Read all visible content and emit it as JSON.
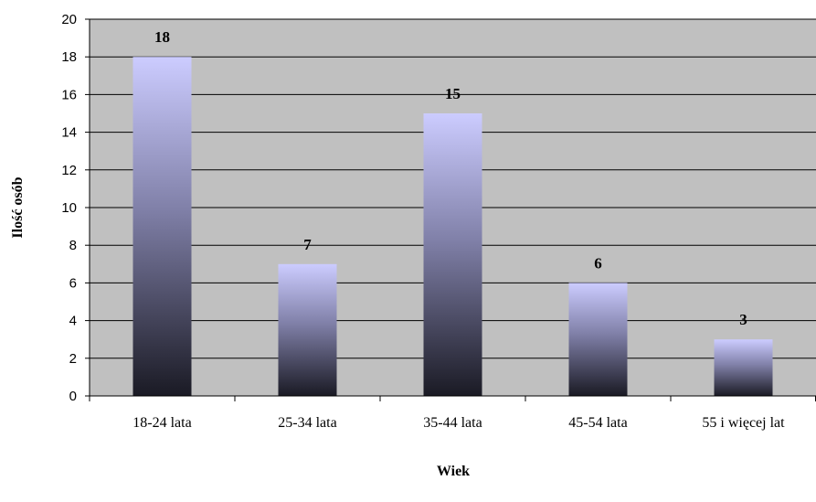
{
  "chart_data": {
    "type": "bar",
    "categories": [
      "18-24 lata",
      "25-34 lata",
      "35-44 lata",
      "45-54 lata",
      "55 i więcej lat"
    ],
    "values": [
      18,
      7,
      15,
      6,
      3
    ],
    "data_labels": [
      "18",
      "7",
      "15",
      "6",
      "3"
    ],
    "xlabel": "Wiek",
    "ylabel": "Ilość osób",
    "ylim": [
      0,
      20
    ],
    "y_ticks": [
      "0",
      "2",
      "4",
      "6",
      "8",
      "10",
      "12",
      "14",
      "16",
      "18",
      "20"
    ],
    "grid": true,
    "legend": false,
    "colors": {
      "plot_background": "#c0c0c0",
      "bar_top": "#ccccff",
      "bar_bottom": "#1a1a24",
      "gridline": "#000000"
    }
  }
}
